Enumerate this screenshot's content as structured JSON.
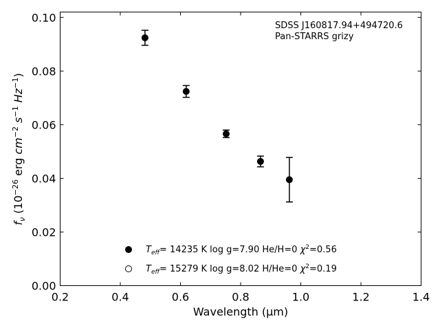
{
  "chart_data": {
    "type": "scatter",
    "annotation": {
      "line1": "SDSS J160817.94+494720.6",
      "line2": "Pan-STARRS grizy"
    },
    "xlabel": "Wavelength (μm)",
    "ylabel_parts": {
      "f": "f",
      "nu": "ν",
      "open": " (10",
      "exp1": "−26",
      "erg": " erg ",
      "cm": "cm",
      "exp2": "−2",
      "s": " s",
      "exp3": "−1",
      "hz": " Hz",
      "exp4": "−1",
      "close": ")"
    },
    "xlim": [
      0.2,
      1.4
    ],
    "ylim": [
      0.0,
      0.102
    ],
    "x_ticks": [
      0.2,
      0.4,
      0.6,
      0.8,
      1.0,
      1.2,
      1.4
    ],
    "x_tick_labels": [
      "0.2",
      "0.4",
      "0.6",
      "0.8",
      "1.0",
      "1.2",
      "1.4"
    ],
    "y_ticks": [
      0.0,
      0.02,
      0.04,
      0.06,
      0.08,
      0.1
    ],
    "y_tick_labels": [
      "0.00",
      "0.02",
      "0.04",
      "0.06",
      "0.08",
      "0.10"
    ],
    "grid": false,
    "series": [
      {
        "marker": "filled-circle",
        "points": [
          {
            "x": 0.482,
            "y": 0.0924,
            "err": 0.0028
          },
          {
            "x": 0.619,
            "y": 0.0724,
            "err": 0.0022
          },
          {
            "x": 0.752,
            "y": 0.0566,
            "err": 0.0014
          },
          {
            "x": 0.866,
            "y": 0.0463,
            "err": 0.002
          },
          {
            "x": 0.962,
            "y": 0.0395,
            "err": 0.0083
          }
        ]
      }
    ],
    "legend": {
      "placement": "lower-center",
      "entries": [
        {
          "marker": "filled-circle",
          "t": "T",
          "t_sub": "eff",
          "text": "= 14235 K  log g=7.90  He/H=0  ",
          "chi": "χ",
          "chi_sup": "2",
          "chi_val": "=0.56"
        },
        {
          "marker": "open-circle",
          "t": "T",
          "t_sub": "eff",
          "text": "= 15279 K  log g=8.02  H/He=0  ",
          "chi": "χ",
          "chi_sup": "2",
          "chi_val": "=0.19"
        }
      ]
    }
  }
}
